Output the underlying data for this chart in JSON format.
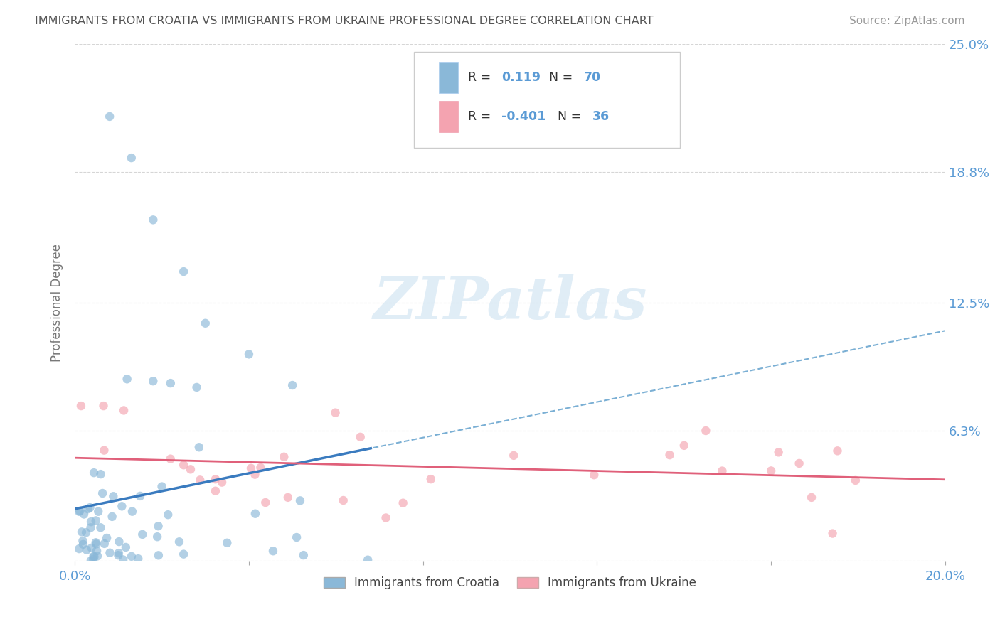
{
  "title": "IMMIGRANTS FROM CROATIA VS IMMIGRANTS FROM UKRAINE PROFESSIONAL DEGREE CORRELATION CHART",
  "source_text": "Source: ZipAtlas.com",
  "ylabel": "Professional Degree",
  "watermark": "ZIPatlas",
  "xlim": [
    0.0,
    0.2
  ],
  "ylim": [
    0.0,
    0.25
  ],
  "xticks": [
    0.0,
    0.04,
    0.08,
    0.12,
    0.16,
    0.2
  ],
  "xtick_labels": [
    "0.0%",
    "",
    "",
    "",
    "",
    "20.0%"
  ],
  "ytick_labels": [
    "",
    "6.3%",
    "12.5%",
    "18.8%",
    "25.0%"
  ],
  "yticks": [
    0.0,
    0.063,
    0.125,
    0.188,
    0.25
  ],
  "croatia_color": "#8ab8d8",
  "ukraine_color": "#f4a3b0",
  "croatia_line_color": "#3a7bbf",
  "ukraine_line_color": "#e0607a",
  "croatia_dash_color": "#7aafd4",
  "croatia_R": 0.119,
  "croatia_N": 70,
  "ukraine_R": -0.401,
  "ukraine_N": 36,
  "legend_label1": "Immigrants from Croatia",
  "legend_label2": "Immigrants from Ukraine",
  "background_color": "#ffffff",
  "grid_color": "#cccccc",
  "title_color": "#555555",
  "axis_label_color": "#777777",
  "tick_color": "#5b9bd5",
  "right_tick_color": "#5b9bd5"
}
